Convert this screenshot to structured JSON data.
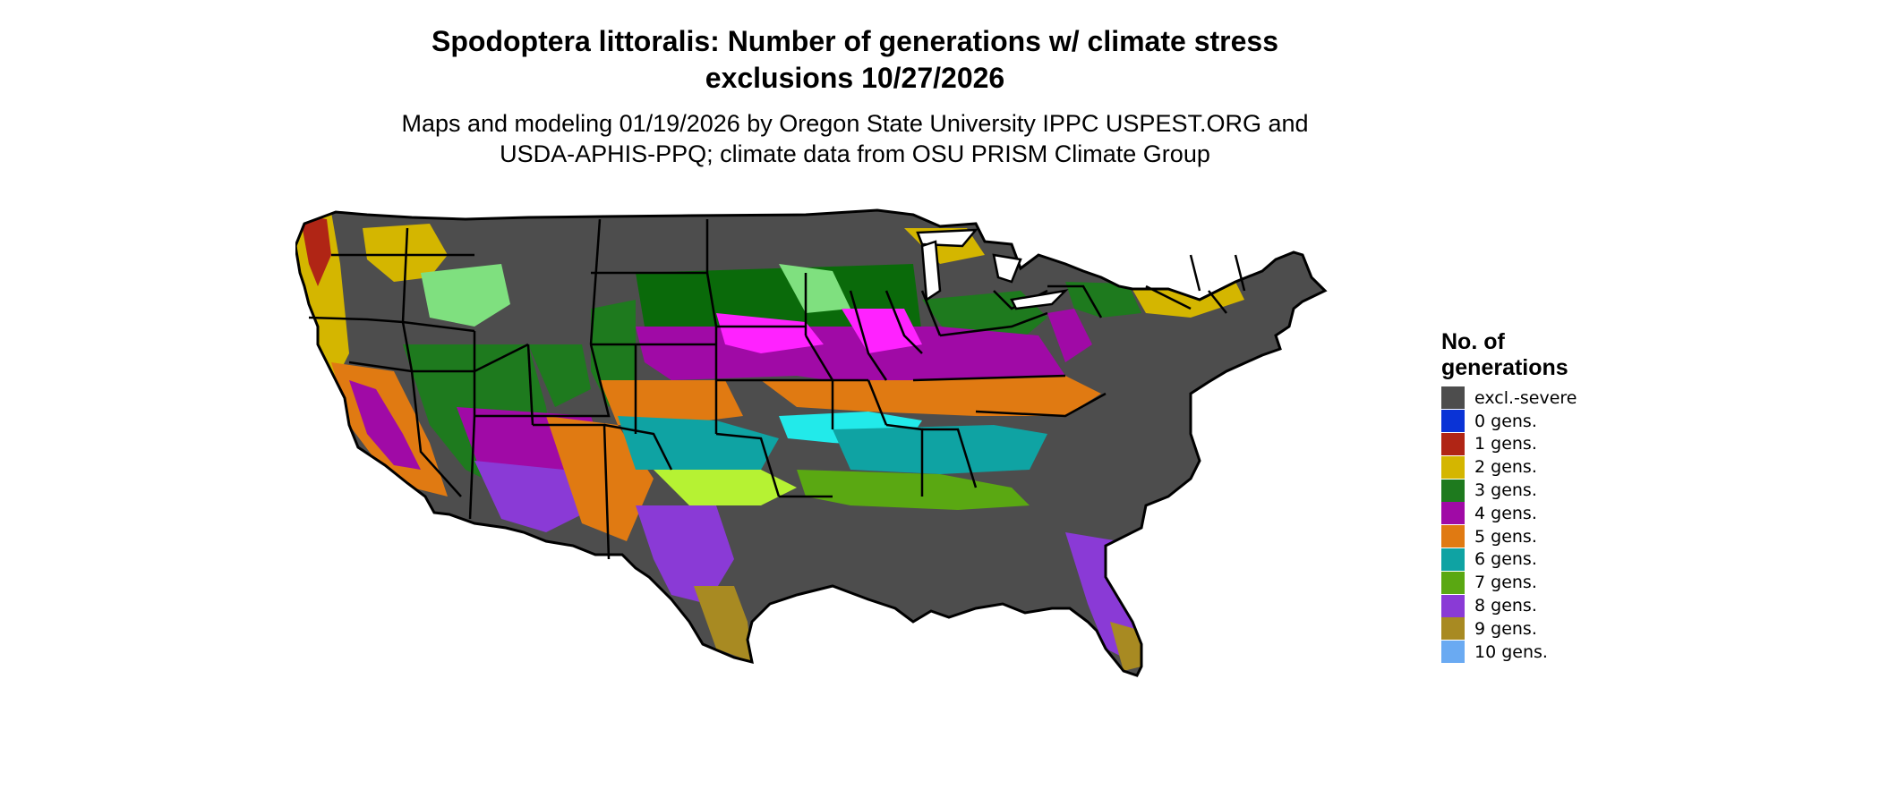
{
  "title": "Spodoptera littoralis: Number of generations w/ climate stress exclusions 10/27/2026",
  "title_line1": "Spodoptera littoralis: Number of generations w/ climate stress",
  "title_line2": "exclusions 10/27/2026",
  "subtitle_line1": "Maps and modeling 01/19/2026 by Oregon State University IPPC USPEST.ORG and",
  "subtitle_line2": "USDA-APHIS-PPQ; climate data from OSU PRISM Climate Group",
  "legend": {
    "title_line1": "No. of",
    "title_line2": "generations",
    "items": [
      {
        "label": "excl.-severe",
        "color": "#4d4d4d"
      },
      {
        "label": "0 gens.",
        "color": "#0a33d6"
      },
      {
        "label": "1 gens.",
        "color": "#b02515"
      },
      {
        "label": "2 gens.",
        "color": "#d4b600"
      },
      {
        "label": "3 gens.",
        "color": "#1e7a1e"
      },
      {
        "label": "4 gens.",
        "color": "#a00aa6"
      },
      {
        "label": "5 gens.",
        "color": "#e07a12"
      },
      {
        "label": "6 gens.",
        "color": "#0fa3a3"
      },
      {
        "label": "7 gens.",
        "color": "#5aa812"
      },
      {
        "label": "8 gens.",
        "color": "#8a3ad6"
      },
      {
        "label": "9 gens.",
        "color": "#a88a22"
      },
      {
        "label": "10 gens.",
        "color": "#6aaaf2"
      }
    ]
  },
  "map_colors": {
    "excl": "#4d4d4d",
    "gen1": "#b02515",
    "gen2": "#d4b600",
    "gen3": "#1e7a1e",
    "gen3_dark": "#0a6a0a",
    "gen3_light": "#7fe07f",
    "gen4": "#a00aa6",
    "gen4_light": "#ff22ff",
    "gen5": "#e07a12",
    "gen6": "#0fa3a3",
    "gen6_light": "#22eaea",
    "gen7": "#5aa812",
    "gen7_light": "#b6f233",
    "gen8": "#8a3ad6",
    "gen9": "#a88a22"
  }
}
